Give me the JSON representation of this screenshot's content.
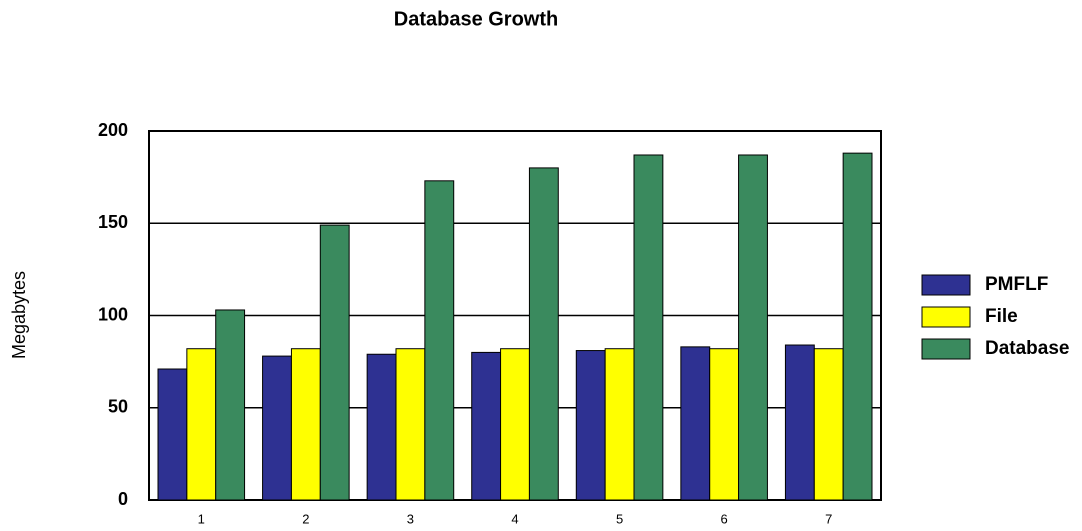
{
  "chart_data": {
    "type": "bar",
    "title": "Database Growth",
    "y_label": "Megabytes",
    "categories": [
      "1",
      "2",
      "3",
      "4",
      "5",
      "6",
      "7"
    ],
    "series": [
      {
        "name": "PMFLF",
        "color": "#2e3192",
        "values": [
          71,
          78,
          79,
          80,
          81,
          83,
          84
        ]
      },
      {
        "name": "File",
        "color": "#ffff00",
        "values": [
          82,
          82,
          82,
          82,
          82,
          82,
          82
        ]
      },
      {
        "name": "Database",
        "color": "#3a8a5e",
        "values": [
          103,
          149,
          173,
          180,
          187,
          187,
          188
        ]
      }
    ],
    "ylim": [
      0,
      200
    ],
    "yticks": [
      0,
      50,
      100,
      150,
      200
    ],
    "grid": true,
    "legend": "right"
  }
}
